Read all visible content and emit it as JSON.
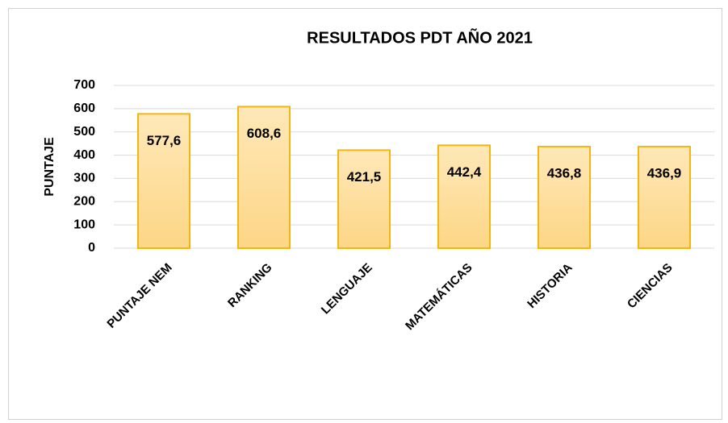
{
  "chart_data": {
    "type": "bar",
    "title": "RESULTADOS PDT AÑO 2021",
    "y_label": "PUNTAJE",
    "categories": [
      "PUNTAJE NEM",
      "RANKING",
      "LENGUAJE",
      "MATEMÁTICAS",
      "HISTORIA",
      "CIENCIAS"
    ],
    "values": [
      577.6,
      608.6,
      421.5,
      442.4,
      436.8,
      436.9
    ],
    "value_labels": [
      "577,6",
      "608,6",
      "421,5",
      "442,4",
      "436,8",
      "436,9"
    ],
    "color": "#fdd686",
    "edge_color": "#f5b50f",
    "ylim": [
      0,
      700
    ],
    "yticks": [
      0,
      100,
      200,
      300,
      400,
      500,
      600,
      700
    ],
    "grid": true
  }
}
